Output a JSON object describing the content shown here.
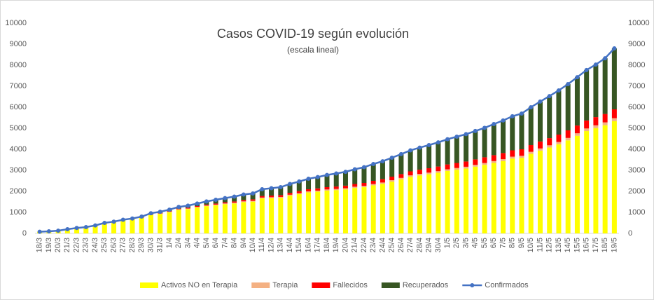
{
  "chart_data": {
    "type": "stacked_bar_line",
    "title": "Casos COVID-19 según evolución",
    "subtitle": "(escala lineal)",
    "categories": [
      "18/3",
      "19/3",
      "20/3",
      "21/3",
      "22/3",
      "23/3",
      "24/3",
      "25/3",
      "26/3",
      "27/3",
      "28/3",
      "29/3",
      "30/3",
      "31/3",
      "1/4",
      "2/4",
      "3/4",
      "4/4",
      "5/4",
      "6/4",
      "7/4",
      "8/4",
      "9/4",
      "10/4",
      "11/4",
      "12/4",
      "13/4",
      "14/4",
      "15/4",
      "16/4",
      "17/4",
      "18/4",
      "19/4",
      "20/4",
      "21/4",
      "22/4",
      "23/4",
      "24/4",
      "25/4",
      "26/4",
      "27/4",
      "28/4",
      "29/4",
      "30/4",
      "1/5",
      "2/5",
      "3/5",
      "4/5",
      "5/5",
      "6/5",
      "7/5",
      "8/5",
      "9/5",
      "10/5",
      "11/5",
      "12/5",
      "13/5",
      "14/5",
      "15/5",
      "16/5",
      "17/5",
      "18/5",
      "19/5"
    ],
    "series": [
      {
        "name": "Activos NO en Terapia",
        "color": "#ffff00",
        "kind": "bar",
        "values": [
          78,
          98,
          126,
          195,
          253,
          291,
          369,
          486,
          542,
          628,
          684,
          740,
          874,
          928,
          1012,
          1126,
          1160,
          1234,
          1297,
          1340,
          1393,
          1426,
          1489,
          1512,
          1665,
          1678,
          1691,
          1794,
          1867,
          1950,
          1983,
          2036,
          2059,
          2092,
          2160,
          2198,
          2286,
          2354,
          2462,
          2570,
          2688,
          2756,
          2814,
          2882,
          2970,
          3028,
          3086,
          3174,
          3262,
          3350,
          3438,
          3556,
          3594,
          3782,
          3940,
          4085,
          4240,
          4425,
          4640,
          4865,
          5010,
          5145,
          5340
        ]
      },
      {
        "name": "Terapia",
        "color": "#f4b183",
        "kind": "bar",
        "values": [
          0,
          0,
          1,
          2,
          3,
          4,
          5,
          6,
          8,
          10,
          12,
          14,
          16,
          18,
          20,
          22,
          24,
          26,
          28,
          30,
          32,
          34,
          36,
          38,
          40,
          42,
          44,
          46,
          48,
          50,
          52,
          54,
          56,
          58,
          60,
          62,
          64,
          66,
          68,
          70,
          72,
          74,
          76,
          78,
          80,
          82,
          84,
          86,
          88,
          90,
          92,
          94,
          96,
          98,
          100,
          105,
          110,
          115,
          120,
          125,
          130,
          135,
          140
        ]
      },
      {
        "name": "Fallecidos",
        "color": "#ff0000",
        "kind": "bar",
        "values": [
          2,
          2,
          3,
          3,
          4,
          5,
          6,
          8,
          10,
          12,
          14,
          16,
          20,
          24,
          28,
          32,
          36,
          40,
          45,
          50,
          55,
          60,
          65,
          70,
          75,
          80,
          85,
          90,
          95,
          100,
          105,
          110,
          115,
          120,
          130,
          140,
          150,
          160,
          170,
          180,
          190,
          200,
          210,
          220,
          230,
          240,
          250,
          260,
          270,
          280,
          290,
          300,
          310,
          320,
          330,
          340,
          350,
          360,
          370,
          380,
          390,
          400,
          420
        ]
      },
      {
        "name": "Recuperados",
        "color": "#375623",
        "kind": "bar",
        "values": [
          0,
          0,
          0,
          0,
          0,
          0,
          0,
          0,
          0,
          0,
          0,
          30,
          50,
          60,
          70,
          80,
          100,
          120,
          150,
          180,
          200,
          230,
          260,
          280,
          320,
          350,
          380,
          420,
          460,
          500,
          540,
          580,
          620,
          660,
          700,
          750,
          800,
          850,
          900,
          950,
          1000,
          1050,
          1100,
          1150,
          1200,
          1250,
          1300,
          1350,
          1400,
          1480,
          1550,
          1620,
          1700,
          1800,
          1900,
          2000,
          2100,
          2200,
          2300,
          2400,
          2500,
          2650,
          2900
        ]
      },
      {
        "name": "Confirmados",
        "color": "#4472c4",
        "kind": "line",
        "values": [
          80,
          100,
          130,
          200,
          260,
          300,
          380,
          500,
          560,
          650,
          710,
          800,
          960,
          1030,
          1130,
          1260,
          1320,
          1420,
          1520,
          1600,
          1680,
          1750,
          1850,
          1900,
          2100,
          2150,
          2200,
          2350,
          2470,
          2600,
          2680,
          2780,
          2850,
          2930,
          3050,
          3150,
          3300,
          3430,
          3600,
          3770,
          3950,
          4080,
          4200,
          4330,
          4480,
          4600,
          4720,
          4870,
          5020,
          5200,
          5370,
          5570,
          5700,
          6000,
          6270,
          6530,
          6800,
          7100,
          7430,
          7770,
          8030,
          8330,
          8800
        ]
      }
    ],
    "ylim": [
      0,
      10000
    ],
    "yticks": [
      0,
      1000,
      2000,
      3000,
      4000,
      5000,
      6000,
      7000,
      8000,
      9000,
      10000
    ],
    "y2lim": [
      0,
      10000
    ],
    "y2ticks": [
      0,
      1000,
      2000,
      3000,
      4000,
      5000,
      6000,
      7000,
      8000,
      9000,
      10000
    ],
    "grid": false,
    "legend": "bottom"
  }
}
